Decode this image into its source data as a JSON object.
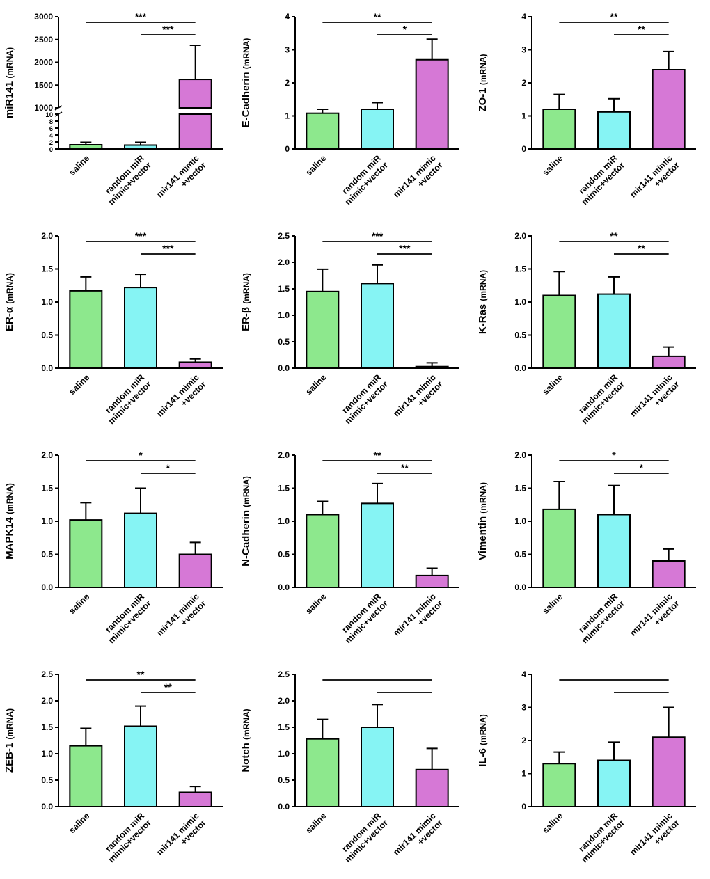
{
  "figure": {
    "background": "#ffffff",
    "ylabel_suffix": "(mRNA)",
    "categories": [
      [
        "saline"
      ],
      [
        "random miR",
        "mimic+vector"
      ],
      [
        "mir141 mimic",
        "+vector"
      ]
    ],
    "bar_colors": [
      "#8DE88D",
      "#86F4F4",
      "#D678D6"
    ],
    "bar_border_color": "#000000",
    "significance_symbols": {
      "p_lt_05": "*",
      "p_lt_01": "**",
      "p_lt_001": "***"
    }
  },
  "chart_data": [
    {
      "type": "bar",
      "ylabel": "miR141",
      "broken_axis": true,
      "lower": {
        "ylim": [
          0,
          10
        ],
        "ticks": [
          0,
          2,
          4,
          6,
          8,
          10
        ],
        "tick_labels": [
          "0",
          "2",
          "4",
          "6",
          "8",
          "10"
        ]
      },
      "upper": {
        "ylim": [
          1000,
          3000
        ],
        "ticks": [
          1000,
          1500,
          2000,
          2500,
          3000
        ],
        "tick_labels": [
          "1000",
          "1500",
          "2000",
          "2500",
          "3000"
        ]
      },
      "values": [
        1.2,
        1.1,
        1625
      ],
      "errors": [
        0.7,
        0.8,
        750
      ],
      "significance": [
        {
          "from": 0,
          "to": 2,
          "label": "***"
        },
        {
          "from": 1,
          "to": 2,
          "label": "***"
        }
      ]
    },
    {
      "type": "bar",
      "ylabel": "E-Cadherin",
      "ylim": [
        0,
        4
      ],
      "ticks": [
        0,
        1,
        2,
        3,
        4
      ],
      "tick_labels": [
        "0",
        "1",
        "2",
        "3",
        "4"
      ],
      "values": [
        1.08,
        1.2,
        2.7
      ],
      "errors": [
        0.12,
        0.2,
        0.62
      ],
      "significance": [
        {
          "from": 0,
          "to": 2,
          "label": "**"
        },
        {
          "from": 1,
          "to": 2,
          "label": "*"
        }
      ]
    },
    {
      "type": "bar",
      "ylabel": "ZO-1",
      "ylim": [
        0,
        4
      ],
      "ticks": [
        0,
        1,
        2,
        3,
        4
      ],
      "tick_labels": [
        "0",
        "1",
        "2",
        "3",
        "4"
      ],
      "values": [
        1.2,
        1.12,
        2.4
      ],
      "errors": [
        0.45,
        0.4,
        0.55
      ],
      "significance": [
        {
          "from": 0,
          "to": 2,
          "label": "**"
        },
        {
          "from": 1,
          "to": 2,
          "label": "**"
        }
      ]
    },
    {
      "type": "bar",
      "ylabel": "ER-α",
      "ylim": [
        0,
        2
      ],
      "ticks": [
        0,
        0.5,
        1,
        1.5,
        2
      ],
      "tick_labels": [
        "0.0",
        "0.5",
        "1.0",
        "1.5",
        "2.0"
      ],
      "values": [
        1.17,
        1.22,
        0.09
      ],
      "errors": [
        0.21,
        0.2,
        0.05
      ],
      "significance": [
        {
          "from": 0,
          "to": 2,
          "label": "***"
        },
        {
          "from": 1,
          "to": 2,
          "label": "***"
        }
      ]
    },
    {
      "type": "bar",
      "ylabel": "ER-β",
      "ylim": [
        0,
        2.5
      ],
      "ticks": [
        0,
        0.5,
        1,
        1.5,
        2,
        2.5
      ],
      "tick_labels": [
        "0.0",
        "0.5",
        "1.0",
        "1.5",
        "2.0",
        "2.5"
      ],
      "values": [
        1.45,
        1.6,
        0.03
      ],
      "errors": [
        0.42,
        0.35,
        0.07
      ],
      "significance": [
        {
          "from": 0,
          "to": 2,
          "label": "***"
        },
        {
          "from": 1,
          "to": 2,
          "label": "***"
        }
      ]
    },
    {
      "type": "bar",
      "ylabel": "K-Ras",
      "ylim": [
        0,
        2
      ],
      "ticks": [
        0,
        0.5,
        1,
        1.5,
        2
      ],
      "tick_labels": [
        "0.0",
        "0.5",
        "1.0",
        "1.5",
        "2.0"
      ],
      "values": [
        1.1,
        1.12,
        0.18
      ],
      "errors": [
        0.36,
        0.26,
        0.14
      ],
      "significance": [
        {
          "from": 0,
          "to": 2,
          "label": "**"
        },
        {
          "from": 1,
          "to": 2,
          "label": "**"
        }
      ]
    },
    {
      "type": "bar",
      "ylabel": "MAPK14",
      "ylim": [
        0,
        2
      ],
      "ticks": [
        0,
        0.5,
        1,
        1.5,
        2
      ],
      "tick_labels": [
        "0.0",
        "0.5",
        "1.0",
        "1.5",
        "2.0"
      ],
      "values": [
        1.02,
        1.12,
        0.5
      ],
      "errors": [
        0.26,
        0.38,
        0.18
      ],
      "significance": [
        {
          "from": 0,
          "to": 2,
          "label": "*"
        },
        {
          "from": 1,
          "to": 2,
          "label": "*"
        }
      ]
    },
    {
      "type": "bar",
      "ylabel": "N-Cadherin",
      "ylim": [
        0,
        2
      ],
      "ticks": [
        0,
        0.5,
        1,
        1.5,
        2
      ],
      "tick_labels": [
        "0.0",
        "0.5",
        "1.0",
        "1.5",
        "2.0"
      ],
      "values": [
        1.1,
        1.27,
        0.18
      ],
      "errors": [
        0.2,
        0.3,
        0.11
      ],
      "significance": [
        {
          "from": 0,
          "to": 2,
          "label": "**"
        },
        {
          "from": 1,
          "to": 2,
          "label": "**"
        }
      ]
    },
    {
      "type": "bar",
      "ylabel": "Vimentin",
      "ylim": [
        0,
        2
      ],
      "ticks": [
        0,
        0.5,
        1,
        1.5,
        2
      ],
      "tick_labels": [
        "0.0",
        "0.5",
        "1.0",
        "1.5",
        "2.0"
      ],
      "values": [
        1.18,
        1.1,
        0.4
      ],
      "errors": [
        0.42,
        0.44,
        0.18
      ],
      "significance": [
        {
          "from": 0,
          "to": 2,
          "label": "*"
        },
        {
          "from": 1,
          "to": 2,
          "label": "*"
        }
      ]
    },
    {
      "type": "bar",
      "ylabel": "ZEB-1",
      "ylim": [
        0,
        2.5
      ],
      "ticks": [
        0,
        0.5,
        1,
        1.5,
        2,
        2.5
      ],
      "tick_labels": [
        "0.0",
        "0.5",
        "1.0",
        "1.5",
        "2.0",
        "2.5"
      ],
      "values": [
        1.15,
        1.52,
        0.27
      ],
      "errors": [
        0.33,
        0.38,
        0.11
      ],
      "significance": [
        {
          "from": 0,
          "to": 2,
          "label": "**"
        },
        {
          "from": 1,
          "to": 2,
          "label": "**"
        }
      ]
    },
    {
      "type": "bar",
      "ylabel": "Notch",
      "ylim": [
        0,
        2.5
      ],
      "ticks": [
        0,
        0.5,
        1,
        1.5,
        2,
        2.5
      ],
      "tick_labels": [
        "0.0",
        "0.5",
        "1.0",
        "1.5",
        "2.0",
        "2.5"
      ],
      "values": [
        1.28,
        1.5,
        0.7
      ],
      "errors": [
        0.37,
        0.43,
        0.4
      ],
      "significance": [
        {
          "from": 0,
          "to": 2,
          "label": ""
        },
        {
          "from": 1,
          "to": 2,
          "label": ""
        }
      ]
    },
    {
      "type": "bar",
      "ylabel": "IL-6",
      "ylim": [
        0,
        4
      ],
      "ticks": [
        0,
        1,
        2,
        3,
        4
      ],
      "tick_labels": [
        "0",
        "1",
        "2",
        "3",
        "4"
      ],
      "values": [
        1.3,
        1.4,
        2.1
      ],
      "errors": [
        0.35,
        0.55,
        0.9
      ],
      "significance": [
        {
          "from": 0,
          "to": 2,
          "label": ""
        },
        {
          "from": 1,
          "to": 2,
          "label": ""
        }
      ]
    }
  ]
}
